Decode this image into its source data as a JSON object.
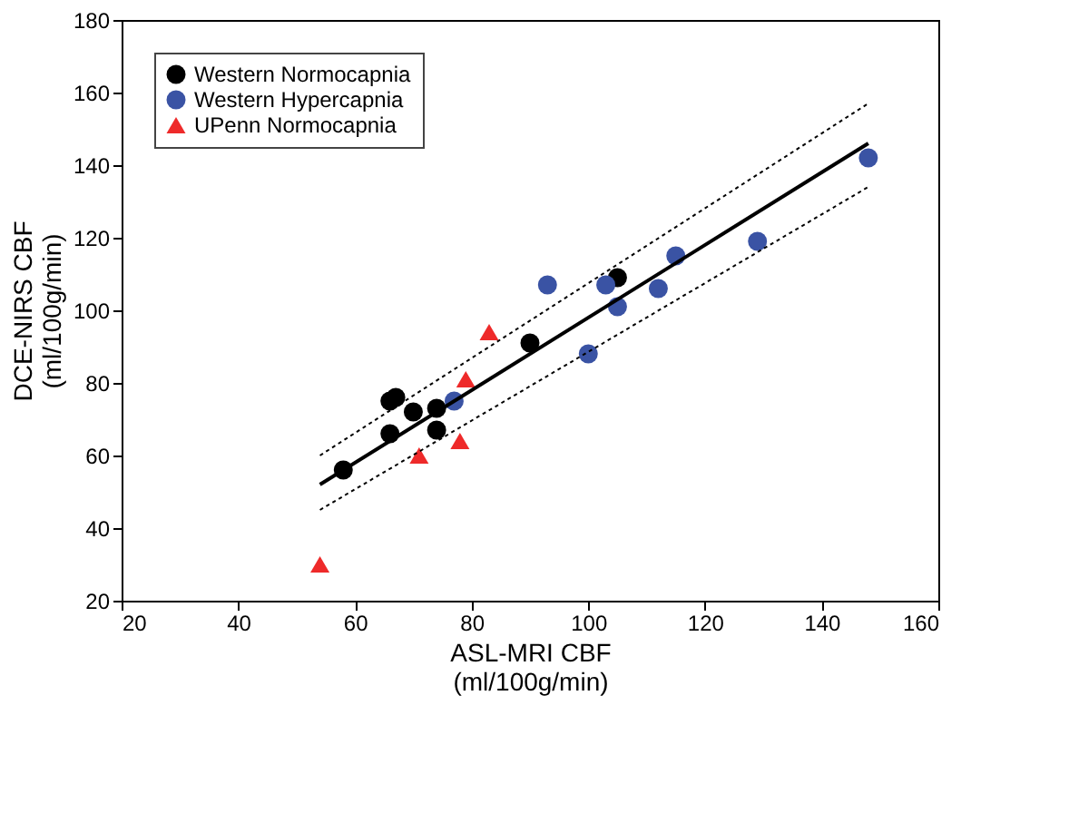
{
  "chart_data": {
    "type": "scatter",
    "xlabel": [
      "ASL-MRI CBF",
      "(ml/100g/min)"
    ],
    "ylabel": [
      "DCE-NIRS CBF",
      "(ml/100g/min)"
    ],
    "xlim": [
      20,
      160
    ],
    "xticks": [
      20,
      40,
      60,
      80,
      100,
      120,
      140,
      160
    ],
    "ylim": [
      20,
      180
    ],
    "yticks": [
      20,
      40,
      60,
      80,
      100,
      120,
      140,
      160,
      180
    ],
    "grid": false,
    "legend": "top left",
    "series": [
      {
        "name": "Western Normocapnia",
        "color": "#000000",
        "marker": "circle",
        "x": [
          58,
          66,
          66,
          67,
          70,
          74,
          74,
          90,
          105
        ],
        "values": [
          56,
          66,
          75,
          76,
          72,
          67,
          73,
          91,
          109
        ]
      },
      {
        "name": "Western Hypercapnia",
        "color": "#3a53a4",
        "marker": "circle",
        "x": [
          77,
          93,
          100,
          103,
          105,
          112,
          115,
          129,
          148
        ],
        "values": [
          75,
          107,
          88,
          107,
          101,
          106,
          115,
          119,
          142
        ]
      },
      {
        "name": "UPenn Normocapnia",
        "color": "#ee2a2a",
        "marker": "triangle",
        "x": [
          54,
          71,
          78,
          79,
          83
        ],
        "values": [
          30,
          60,
          64,
          81,
          94
        ]
      },
      {
        "type": "line",
        "color": "#000000",
        "line_style": "solid",
        "x": [
          54,
          148
        ],
        "values": [
          52,
          146
        ]
      },
      {
        "type": "line",
        "color": "#000000",
        "line_style": "dotted",
        "x": [
          54,
          148
        ],
        "values": [
          60,
          157
        ]
      },
      {
        "type": "line",
        "color": "#000000",
        "line_style": "dotted",
        "x": [
          54,
          148
        ],
        "values": [
          45,
          134
        ]
      }
    ]
  }
}
